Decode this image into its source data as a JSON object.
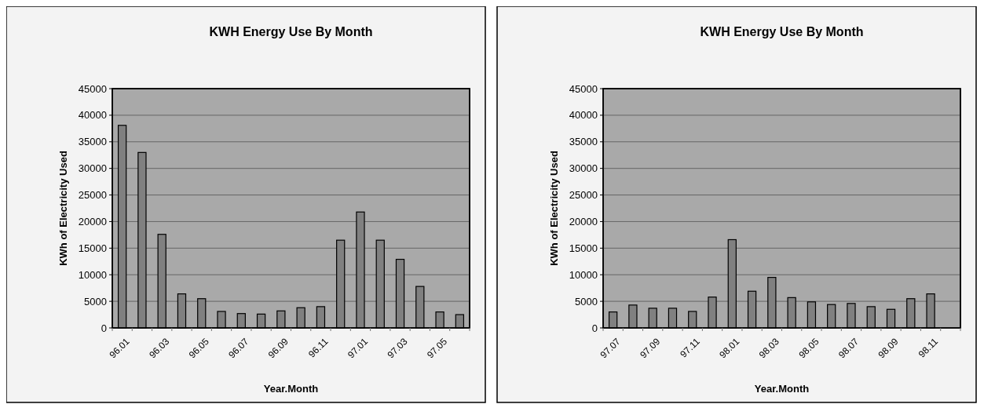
{
  "chart_data": [
    {
      "type": "bar",
      "title": "KWH Energy Use By Month",
      "xlabel": "Year.Month",
      "ylabel": "KWh of Electricity Used",
      "categories": [
        "96.01",
        null,
        "96.03",
        null,
        "96.05",
        null,
        "96.07",
        null,
        "96.09",
        null,
        "96.11",
        null,
        "97.01",
        null,
        "97.03",
        null,
        "97.05",
        null
      ],
      "values": [
        38100,
        33000,
        17600,
        6400,
        5500,
        3100,
        2700,
        2600,
        3200,
        3800,
        4000,
        16500,
        21800,
        16500,
        12900,
        7800,
        3000,
        2500
      ],
      "color": "#808080",
      "ylim": [
        0,
        45000
      ],
      "yticks": [
        0,
        5000,
        10000,
        15000,
        20000,
        25000,
        30000,
        35000,
        40000,
        45000
      ],
      "grid": "y"
    },
    {
      "type": "bar",
      "title": "KWH Energy Use By Month",
      "xlabel": "Year.Month",
      "ylabel": "KWh of Electricity Used",
      "categories": [
        "97.07",
        null,
        "97.09",
        null,
        "97.11",
        null,
        "98.01",
        null,
        "98.03",
        null,
        "98.05",
        null,
        "98.07",
        null,
        "98.09",
        null,
        "98.11",
        null
      ],
      "values": [
        3000,
        4300,
        3700,
        3700,
        3100,
        5800,
        16600,
        6900,
        9500,
        5700,
        4900,
        4400,
        4600,
        4000,
        3500,
        5500,
        6400,
        null
      ],
      "color": "#808080",
      "ylim": [
        0,
        45000
      ],
      "yticks": [
        0,
        5000,
        10000,
        15000,
        20000,
        25000,
        30000,
        35000,
        40000,
        45000
      ],
      "grid": "y"
    }
  ]
}
